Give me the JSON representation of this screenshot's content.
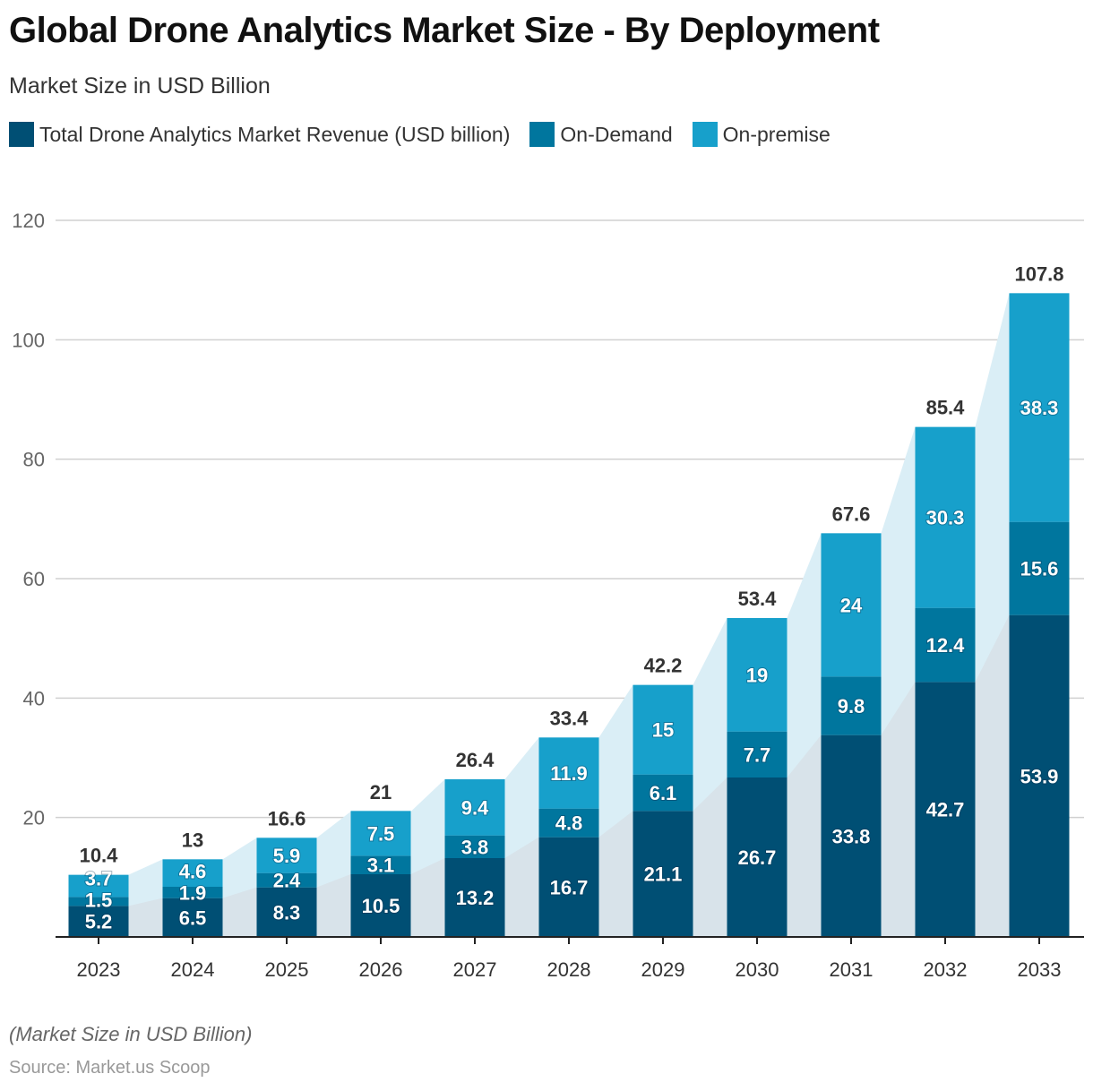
{
  "title": "Global Drone Analytics Market Size - By Deployment",
  "subtitle": "Market Size in USD Billion",
  "note": "(Market Size in USD Billion)",
  "source": "Source: Market.us Scoop",
  "chart_data": {
    "type": "bar",
    "stacked": true,
    "categories": [
      "2023",
      "2024",
      "2025",
      "2026",
      "2027",
      "2028",
      "2029",
      "2030",
      "2031",
      "2032",
      "2033"
    ],
    "series": [
      {
        "name": "Total Drone Analytics Market Revenue (USD billion)",
        "color": "#004f74",
        "values": [
          5.2,
          6.5,
          8.3,
          10.5,
          13.2,
          16.7,
          21.1,
          26.7,
          33.8,
          42.7,
          53.9
        ]
      },
      {
        "name": "On-Demand",
        "color": "#00769e",
        "values": [
          1.5,
          1.9,
          2.4,
          3.1,
          3.8,
          4.8,
          6.1,
          7.7,
          9.8,
          12.4,
          15.6
        ]
      },
      {
        "name": "On-premise",
        "color": "#17a0cb",
        "values": [
          3.7,
          4.6,
          5.9,
          7.5,
          9.4,
          11.9,
          15,
          19,
          24,
          30.3,
          38.3
        ]
      }
    ],
    "totals": [
      10.4,
      13,
      16.6,
      21,
      26.4,
      33.4,
      42.2,
      53.4,
      67.6,
      85.4,
      107.8
    ],
    "yticks": [
      20,
      40,
      60,
      80,
      100,
      120
    ],
    "ylim": [
      0,
      120
    ],
    "grid": true,
    "legend_placement": "top-left"
  }
}
